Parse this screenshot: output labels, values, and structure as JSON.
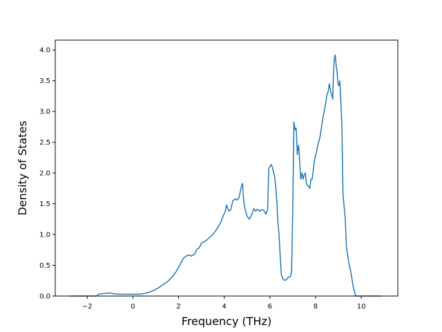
{
  "chart_data": {
    "type": "line",
    "title": "",
    "xlabel": "Frequency (THz)",
    "ylabel": "Density of States",
    "xlim": [
      -3.4,
      11.6
    ],
    "ylim": [
      0,
      4.0
    ],
    "grid": false,
    "legend": "none",
    "line_color": "#1f77b4",
    "x_ticks": [
      -2,
      0,
      2,
      4,
      6,
      8,
      10
    ],
    "x_tick_labels": [
      "−2",
      "0",
      "2",
      "4",
      "6",
      "8",
      "10"
    ],
    "y_ticks": [
      0,
      0.5,
      1.0,
      1.5,
      2.0,
      2.5,
      3.0,
      3.5,
      4.0
    ],
    "y_tick_labels": [
      "0.0",
      "0.5",
      "1.0",
      "1.5",
      "2.0",
      "2.5",
      "3.0",
      "3.5",
      "4.0"
    ],
    "series": [
      {
        "x": [
          -2.75,
          -1.6,
          -1.5,
          -1.3,
          -1.0,
          -0.9,
          -0.6,
          -0.3,
          0,
          0.3,
          0.5,
          0.7,
          0.9,
          1.1,
          1.3,
          1.5,
          1.7,
          1.9,
          2.05,
          2.2,
          2.3,
          2.45,
          2.55,
          2.7,
          2.8,
          2.9,
          3.0,
          3.2,
          3.35,
          3.5,
          3.7,
          3.85,
          3.95,
          4.05,
          4.1,
          4.2,
          4.28,
          4.38,
          4.48,
          4.55,
          4.65,
          4.75,
          4.8,
          4.85,
          4.92,
          5.0,
          5.1,
          5.2,
          5.3,
          5.38,
          5.45,
          5.55,
          5.62,
          5.7,
          5.75,
          5.82,
          5.9,
          5.95,
          6.0,
          6.05,
          6.1,
          6.15,
          6.2,
          6.25,
          6.3,
          6.35,
          6.4,
          6.45,
          6.5,
          6.55,
          6.6,
          6.7,
          6.8,
          6.9,
          6.95,
          7.0,
          7.05,
          7.1,
          7.15,
          7.2,
          7.25,
          7.28,
          7.3,
          7.35,
          7.4,
          7.45,
          7.5,
          7.55,
          7.6,
          7.7,
          7.75,
          7.8,
          7.85,
          7.95,
          8.1,
          8.2,
          8.3,
          8.4,
          8.45,
          8.5,
          8.55,
          8.6,
          8.65,
          8.75,
          8.78,
          8.82,
          8.86,
          8.9,
          8.94,
          8.98,
          9.02,
          9.06,
          9.1,
          9.15,
          9.2,
          9.3,
          9.35,
          9.45,
          9.55,
          9.65,
          9.72,
          9.75,
          9.8,
          10.0,
          10.9
        ],
        "y": [
          0.0,
          0.0,
          0.03,
          0.04,
          0.05,
          0.04,
          0.03,
          0.03,
          0.03,
          0.03,
          0.04,
          0.06,
          0.09,
          0.13,
          0.18,
          0.23,
          0.3,
          0.4,
          0.5,
          0.61,
          0.64,
          0.67,
          0.65,
          0.68,
          0.76,
          0.78,
          0.86,
          0.9,
          0.95,
          1.0,
          1.1,
          1.2,
          1.3,
          1.38,
          1.48,
          1.38,
          1.4,
          1.55,
          1.58,
          1.56,
          1.6,
          1.78,
          1.83,
          1.55,
          1.4,
          1.3,
          1.25,
          1.32,
          1.42,
          1.38,
          1.41,
          1.38,
          1.4,
          1.4,
          1.38,
          1.33,
          1.4,
          2.08,
          2.1,
          2.14,
          2.1,
          2.03,
          1.95,
          1.8,
          1.55,
          1.2,
          1.0,
          0.65,
          0.35,
          0.3,
          0.26,
          0.26,
          0.3,
          0.32,
          0.4,
          1.4,
          2.83,
          2.7,
          2.73,
          2.3,
          2.45,
          2.35,
          2.2,
          1.9,
          2.0,
          1.9,
          1.97,
          2.0,
          1.82,
          1.78,
          1.75,
          1.9,
          1.9,
          2.2,
          2.45,
          2.6,
          2.85,
          3.05,
          3.15,
          3.28,
          3.32,
          3.45,
          3.35,
          3.2,
          3.6,
          3.85,
          3.92,
          3.75,
          3.65,
          3.45,
          3.42,
          3.5,
          3.2,
          2.8,
          1.65,
          1.25,
          0.8,
          0.55,
          0.38,
          0.15,
          0.05,
          0.0,
          0.0,
          0.0,
          0.0
        ]
      }
    ]
  }
}
